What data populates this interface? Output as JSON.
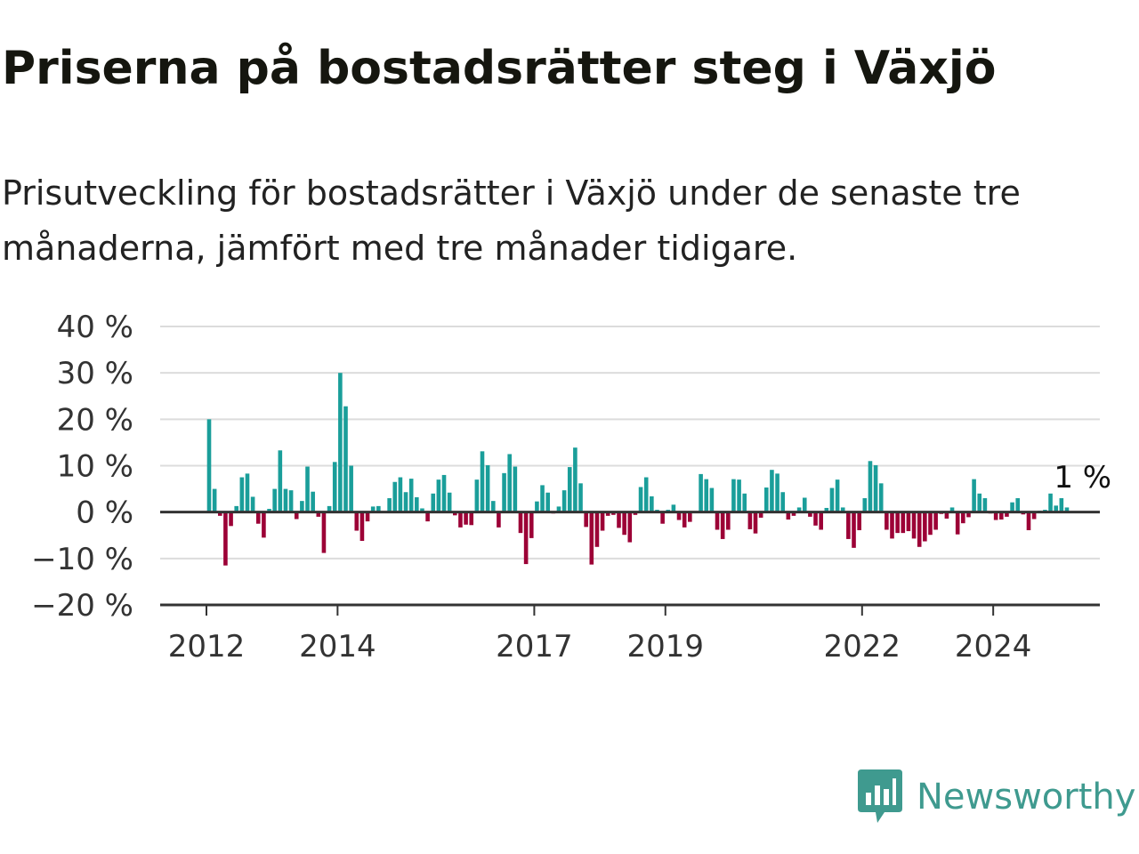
{
  "title": "Priserna på bostadsrätter steg i Växjö",
  "subtitle": "Prisutveckling för bostadsrätter i Växjö under de senaste tre månaderna, jämfört med tre månader tidigare.",
  "brand": {
    "name": "Newsworthy",
    "icon": "newsworthy-logo-icon",
    "color": "#3f9a8f"
  },
  "colors": {
    "positive": "#1a9e9a",
    "negative": "#9c0036",
    "grid": "#dcdcdc",
    "axis": "#333333"
  },
  "chart_data": {
    "type": "bar",
    "title": "Priserna på bostadsrätter steg i Växjö",
    "subtitle": "Prisutveckling för bostadsrätter i Växjö under de senaste tre månaderna, jämfört med tre månader tidigare.",
    "xlabel": "",
    "ylabel": "",
    "unit": "%",
    "ylim": [
      -20,
      40
    ],
    "yticks": [
      40,
      30,
      20,
      10,
      0,
      -10,
      -20
    ],
    "ytick_labels": [
      "40 %",
      "30 %",
      "20 %",
      "10 %",
      "0 %",
      "−10 %",
      "−20 %"
    ],
    "xticks": [
      {
        "label": "2012",
        "index": 0
      },
      {
        "label": "2014",
        "index": 24
      },
      {
        "label": "2017",
        "index": 60
      },
      {
        "label": "2019",
        "index": 84
      },
      {
        "label": "2022",
        "index": 120
      },
      {
        "label": "2024",
        "index": 144
      }
    ],
    "grid": true,
    "annotation": {
      "text": "1 %",
      "index": 155
    },
    "series": [
      {
        "values": [
          20,
          5,
          -0.8,
          -11.5,
          -3,
          1.3,
          7.5,
          8.3,
          3.3,
          -2.5,
          -5.5,
          0.7,
          5,
          13.3,
          5,
          4.7,
          -1.5,
          2.4,
          9.8,
          4.4,
          -1,
          -8.8,
          1.3,
          10.8,
          30,
          22.8,
          10,
          -4,
          -6.2,
          -2,
          1.2,
          1.3,
          0.2,
          3,
          6.5,
          7.5,
          4.3,
          7.2,
          3.2,
          0.8,
          -2,
          4,
          7,
          8,
          4.2,
          -0.7,
          -3.3,
          -2.7,
          -2.8,
          7,
          13.1,
          10.1,
          2.4,
          -3.3,
          8.4,
          12.5,
          9.8,
          -4.5,
          -11.2,
          -5.6,
          2.3,
          5.8,
          4.2,
          -0.3,
          1.2,
          4.7,
          9.7,
          13.9,
          6.2,
          -3.2,
          -11.3,
          -7.5,
          -4,
          -0.8,
          -0.6,
          -3.4,
          -4.9,
          -6.5,
          -0.6,
          5.4,
          7.5,
          3.4,
          0.5,
          -2.5,
          0.5,
          1.6,
          -1.7,
          -3.3,
          -2.1,
          -0.2,
          8.2,
          7.1,
          5.2,
          -3.8,
          -5.8,
          -3.8,
          7.1,
          7,
          4,
          -3.7,
          -4.6,
          -1.2,
          5.3,
          9.1,
          8.3,
          4.3,
          -1.6,
          -0.8,
          1,
          3.1,
          -1,
          -2.9,
          -3.8,
          0.9,
          5.2,
          7,
          1,
          -5.8,
          -7.7,
          -3.9,
          3,
          11,
          10.1,
          6.2,
          -3.8,
          -5.7,
          -4.5,
          -4.5,
          -4.1,
          -5.7,
          -7.5,
          -6.3,
          -4.9,
          -3.8,
          -0.4,
          -1.4,
          1,
          -4.8,
          -2.4,
          -1.1,
          7.1,
          4,
          3,
          -0.3,
          -1.7,
          -1.6,
          -1,
          2.1,
          3,
          -0.5,
          -3.9,
          -1.5,
          0.3,
          0.5,
          4,
          1.4,
          3,
          1
        ]
      }
    ]
  }
}
